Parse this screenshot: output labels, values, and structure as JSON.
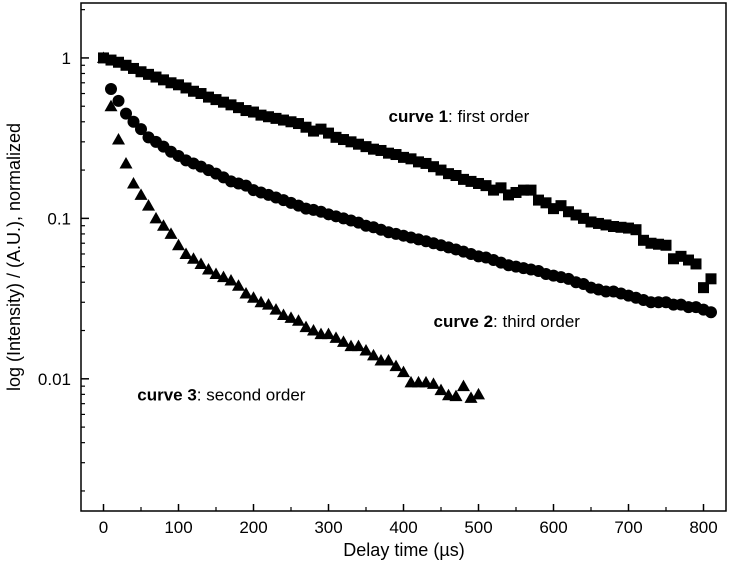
{
  "chart_data": {
    "type": "scatter",
    "title": "",
    "xlabel": "Delay time (µs)",
    "ylabel": "log (Intensity) / (A.U.), normalized",
    "xlim": [
      -30,
      830
    ],
    "ylim": [
      0.0015,
      2.2
    ],
    "yscale": "log",
    "grid": false,
    "xticks": [
      0,
      100,
      200,
      300,
      400,
      500,
      600,
      700,
      800
    ],
    "xtick_labels": [
      "0",
      "100",
      "200",
      "300",
      "400",
      "500",
      "600",
      "700",
      "800"
    ],
    "yticks": [
      1,
      0.1,
      0.01
    ],
    "ytick_labels": [
      "1",
      "0.1",
      "0.01"
    ],
    "color": "#000000",
    "series": [
      {
        "marker": "square",
        "x": [
          0,
          10,
          20,
          30,
          40,
          50,
          60,
          70,
          80,
          90,
          100,
          110,
          120,
          130,
          140,
          150,
          160,
          170,
          180,
          190,
          200,
          210,
          220,
          230,
          240,
          250,
          260,
          270,
          280,
          290,
          300,
          310,
          320,
          330,
          340,
          350,
          360,
          370,
          380,
          390,
          400,
          410,
          420,
          430,
          440,
          450,
          460,
          470,
          480,
          490,
          500,
          510,
          520,
          530,
          540,
          550,
          560,
          570,
          580,
          590,
          600,
          610,
          620,
          630,
          640,
          650,
          660,
          670,
          680,
          690,
          700,
          710,
          720,
          730,
          740,
          750,
          760,
          770,
          780,
          790,
          800,
          810
        ],
        "y": [
          1.0,
          0.97,
          0.94,
          0.9,
          0.86,
          0.82,
          0.79,
          0.76,
          0.73,
          0.7,
          0.68,
          0.65,
          0.62,
          0.6,
          0.57,
          0.55,
          0.53,
          0.51,
          0.49,
          0.47,
          0.46,
          0.44,
          0.43,
          0.42,
          0.41,
          0.4,
          0.39,
          0.37,
          0.35,
          0.36,
          0.34,
          0.32,
          0.31,
          0.3,
          0.29,
          0.28,
          0.27,
          0.265,
          0.255,
          0.25,
          0.24,
          0.235,
          0.225,
          0.22,
          0.21,
          0.2,
          0.19,
          0.185,
          0.175,
          0.17,
          0.165,
          0.16,
          0.15,
          0.155,
          0.14,
          0.145,
          0.15,
          0.15,
          0.13,
          0.125,
          0.115,
          0.12,
          0.11,
          0.105,
          0.1,
          0.095,
          0.093,
          0.091,
          0.089,
          0.088,
          0.087,
          0.085,
          0.073,
          0.07,
          0.069,
          0.068,
          0.056,
          0.058,
          0.055,
          0.052,
          0.037,
          0.042
        ]
      },
      {
        "marker": "circle",
        "x": [
          10,
          20,
          30,
          40,
          50,
          60,
          70,
          80,
          90,
          100,
          110,
          120,
          130,
          140,
          150,
          160,
          170,
          180,
          190,
          200,
          210,
          220,
          230,
          240,
          250,
          260,
          270,
          280,
          290,
          300,
          310,
          320,
          330,
          340,
          350,
          360,
          370,
          380,
          390,
          400,
          410,
          420,
          430,
          440,
          450,
          460,
          470,
          480,
          490,
          500,
          510,
          520,
          530,
          540,
          550,
          560,
          570,
          580,
          590,
          600,
          610,
          620,
          630,
          640,
          650,
          660,
          670,
          680,
          690,
          700,
          710,
          720,
          730,
          740,
          750,
          760,
          770,
          780,
          790,
          800,
          810
        ],
        "y": [
          0.64,
          0.54,
          0.45,
          0.4,
          0.36,
          0.32,
          0.3,
          0.28,
          0.26,
          0.245,
          0.23,
          0.22,
          0.21,
          0.2,
          0.19,
          0.18,
          0.17,
          0.165,
          0.16,
          0.15,
          0.145,
          0.14,
          0.135,
          0.13,
          0.125,
          0.12,
          0.115,
          0.113,
          0.11,
          0.106,
          0.103,
          0.1,
          0.097,
          0.094,
          0.09,
          0.088,
          0.085,
          0.082,
          0.08,
          0.078,
          0.076,
          0.074,
          0.072,
          0.07,
          0.068,
          0.066,
          0.064,
          0.062,
          0.06,
          0.058,
          0.057,
          0.055,
          0.053,
          0.051,
          0.05,
          0.049,
          0.048,
          0.047,
          0.045,
          0.044,
          0.043,
          0.042,
          0.04,
          0.039,
          0.037,
          0.036,
          0.035,
          0.035,
          0.034,
          0.033,
          0.032,
          0.031,
          0.03,
          0.03,
          0.03,
          0.029,
          0.029,
          0.028,
          0.028,
          0.027,
          0.026
        ]
      },
      {
        "marker": "triangle",
        "x": [
          0,
          10,
          20,
          30,
          40,
          50,
          60,
          70,
          80,
          90,
          100,
          110,
          120,
          130,
          140,
          150,
          160,
          170,
          180,
          190,
          200,
          210,
          220,
          230,
          240,
          250,
          260,
          270,
          280,
          290,
          300,
          310,
          320,
          330,
          340,
          350,
          360,
          370,
          380,
          390,
          400,
          410,
          420,
          430,
          440,
          450,
          460,
          470,
          480,
          490,
          500
        ],
        "y": [
          1.0,
          0.5,
          0.31,
          0.22,
          0.165,
          0.14,
          0.12,
          0.1,
          0.09,
          0.08,
          0.068,
          0.06,
          0.056,
          0.052,
          0.048,
          0.045,
          0.043,
          0.041,
          0.038,
          0.034,
          0.032,
          0.03,
          0.029,
          0.027,
          0.025,
          0.024,
          0.023,
          0.021,
          0.02,
          0.019,
          0.019,
          0.018,
          0.017,
          0.016,
          0.016,
          0.015,
          0.014,
          0.013,
          0.013,
          0.012,
          0.011,
          0.0095,
          0.0095,
          0.0095,
          0.0093,
          0.0085,
          0.0079,
          0.0078,
          0.009,
          0.0076,
          0.008
        ]
      }
    ],
    "annotations": [
      {
        "bold": "curve 1",
        "rest": ": first order",
        "x": 380,
        "y": 0.4
      },
      {
        "bold": "curve 2",
        "rest": ": third order",
        "x": 440,
        "y": 0.021
      },
      {
        "bold": "curve 3",
        "rest": ": second order",
        "x": 45,
        "y": 0.0073
      }
    ]
  }
}
